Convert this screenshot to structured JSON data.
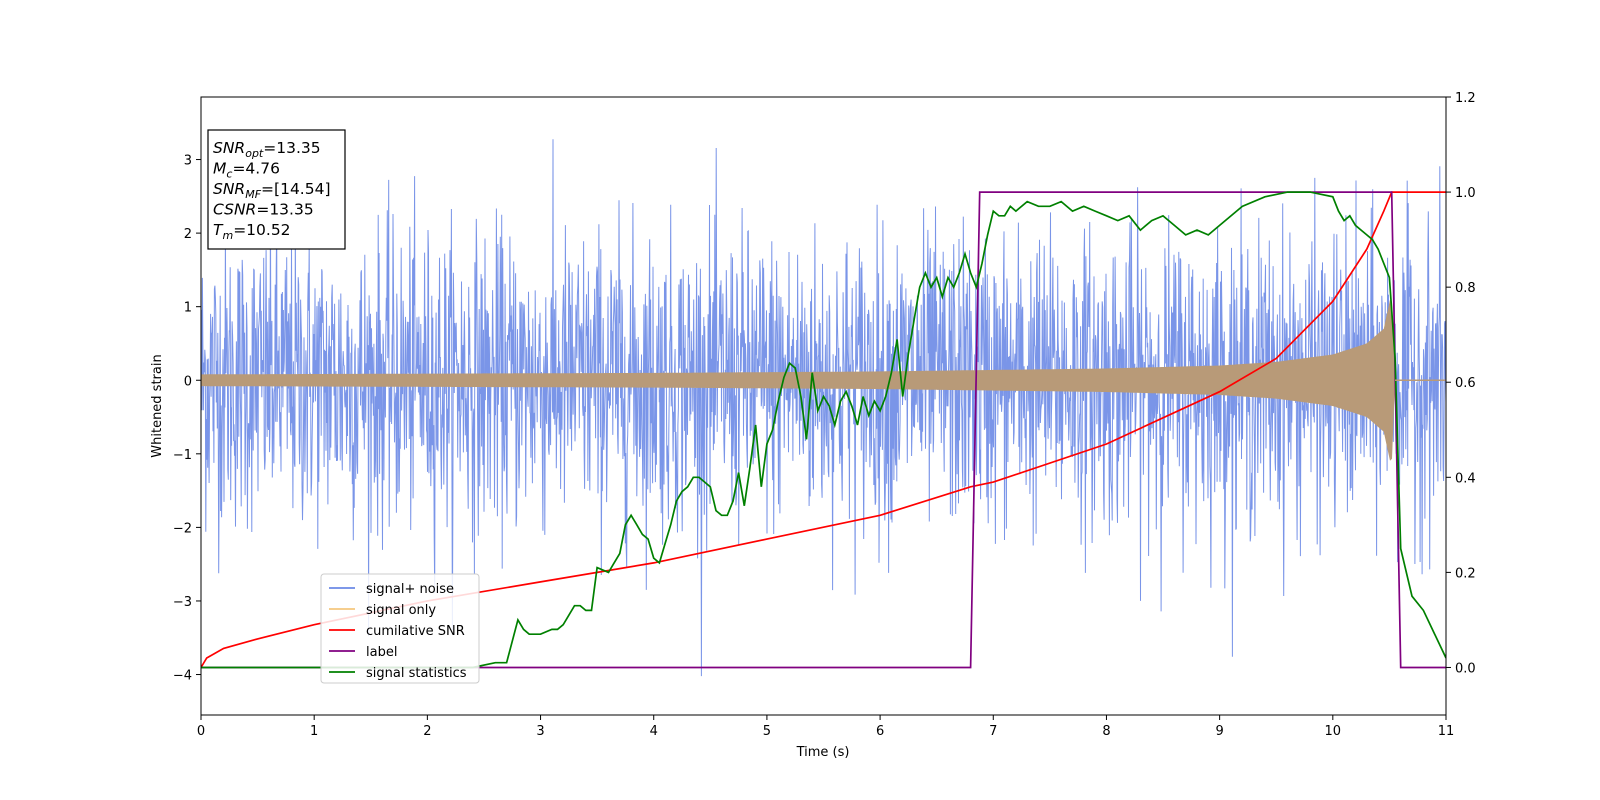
{
  "chart_data": {
    "type": "line",
    "xlabel": "Time (s)",
    "ylabel": "Whitened strain",
    "xlim": [
      0,
      11
    ],
    "ylim_left": [
      -4.55,
      3.85
    ],
    "ylim_right": [
      -0.1,
      1.2
    ],
    "x_ticks": [
      "0",
      "1",
      "2",
      "3",
      "4",
      "5",
      "6",
      "7",
      "8",
      "9",
      "10",
      "11"
    ],
    "y_ticks_left": [
      "−4",
      "−3",
      "−2",
      "−1",
      "0",
      "1",
      "2",
      "3"
    ],
    "y_ticks_right": [
      "0.0",
      "0.2",
      "0.4",
      "0.6",
      "0.8",
      "1.0",
      "1.2"
    ],
    "grid": false,
    "legend_position": "lower-left",
    "colors": {
      "noise": "#6b8ae6",
      "signal": "#f5c77e",
      "cum_snr": "#ff0000",
      "label": "#800080",
      "stat": "#008000",
      "overlap": "#b89a78"
    },
    "annotation": [
      {
        "sym": "SNR",
        "sub": "opt",
        "val": "=13.35"
      },
      {
        "sym": "M",
        "sub": "c",
        "val": "=4.76"
      },
      {
        "sym": "SNR",
        "sub": "MF",
        "val": "=[14.54]"
      },
      {
        "sym": "CSNR",
        "sub": "",
        "val": "=13.35"
      },
      {
        "sym": "T",
        "sub": "m",
        "val": "=10.52"
      }
    ],
    "series": [
      {
        "name": "signal+ noise",
        "axis": "left",
        "description_values": {
          "std": 1.0,
          "x_start": 0,
          "x_end": 11
        }
      },
      {
        "name": "signal only",
        "axis": "left",
        "envelope": {
          "x": [
            0,
            2,
            4,
            6,
            8,
            9,
            9.5,
            10,
            10.3,
            10.45,
            10.52,
            10.55,
            11
          ],
          "amp": [
            0.08,
            0.09,
            0.1,
            0.12,
            0.16,
            0.2,
            0.25,
            0.35,
            0.5,
            0.7,
            1.2,
            0.0,
            0.0
          ]
        }
      },
      {
        "name": "cumilative SNR",
        "axis": "right",
        "x": [
          0,
          0.05,
          0.2,
          0.5,
          1,
          2,
          3,
          4,
          5,
          6,
          6.8,
          7,
          8,
          9,
          9.5,
          10,
          10.3,
          10.45,
          10.52,
          10.55,
          11
        ],
        "y": [
          0.0,
          0.02,
          0.04,
          0.06,
          0.09,
          0.14,
          0.18,
          0.22,
          0.27,
          0.32,
          0.38,
          0.39,
          0.47,
          0.58,
          0.65,
          0.77,
          0.88,
          0.96,
          1.0,
          1.0,
          1.0
        ]
      },
      {
        "name": "label",
        "axis": "right",
        "x": [
          0,
          6.8,
          6.88,
          10.52,
          10.6,
          11
        ],
        "y": [
          0,
          0,
          1,
          1,
          0,
          0
        ]
      },
      {
        "name": "signal statistics",
        "axis": "right",
        "x": [
          0,
          2.4,
          2.6,
          2.7,
          2.8,
          2.85,
          2.9,
          3.0,
          3.1,
          3.15,
          3.2,
          3.3,
          3.35,
          3.4,
          3.45,
          3.5,
          3.6,
          3.65,
          3.7,
          3.75,
          3.8,
          3.85,
          3.9,
          3.95,
          4.0,
          4.05,
          4.1,
          4.15,
          4.2,
          4.25,
          4.3,
          4.35,
          4.4,
          4.45,
          4.5,
          4.55,
          4.6,
          4.65,
          4.7,
          4.75,
          4.8,
          4.85,
          4.9,
          4.95,
          5.0,
          5.05,
          5.1,
          5.15,
          5.2,
          5.25,
          5.3,
          5.35,
          5.4,
          5.45,
          5.5,
          5.55,
          5.6,
          5.65,
          5.7,
          5.75,
          5.8,
          5.85,
          5.9,
          5.95,
          6.0,
          6.05,
          6.1,
          6.15,
          6.2,
          6.25,
          6.3,
          6.35,
          6.4,
          6.45,
          6.5,
          6.55,
          6.6,
          6.65,
          6.7,
          6.75,
          6.8,
          6.85,
          6.9,
          6.95,
          7.0,
          7.05,
          7.1,
          7.15,
          7.2,
          7.3,
          7.4,
          7.5,
          7.6,
          7.7,
          7.8,
          7.9,
          8.0,
          8.1,
          8.2,
          8.3,
          8.4,
          8.5,
          8.6,
          8.7,
          8.8,
          8.9,
          9.0,
          9.2,
          9.4,
          9.6,
          9.8,
          10.0,
          10.05,
          10.1,
          10.15,
          10.2,
          10.25,
          10.3,
          10.35,
          10.4,
          10.45,
          10.5,
          10.55,
          10.6,
          10.7,
          10.8,
          10.9,
          11.0
        ],
        "y": [
          0.0,
          0.0,
          0.01,
          0.01,
          0.1,
          0.08,
          0.07,
          0.07,
          0.08,
          0.08,
          0.09,
          0.13,
          0.13,
          0.12,
          0.12,
          0.21,
          0.2,
          0.22,
          0.24,
          0.3,
          0.32,
          0.3,
          0.28,
          0.27,
          0.23,
          0.22,
          0.26,
          0.3,
          0.35,
          0.37,
          0.38,
          0.4,
          0.4,
          0.39,
          0.38,
          0.33,
          0.32,
          0.32,
          0.35,
          0.41,
          0.34,
          0.42,
          0.51,
          0.38,
          0.47,
          0.5,
          0.56,
          0.61,
          0.64,
          0.63,
          0.57,
          0.48,
          0.62,
          0.54,
          0.57,
          0.55,
          0.51,
          0.56,
          0.58,
          0.55,
          0.51,
          0.57,
          0.53,
          0.56,
          0.54,
          0.57,
          0.62,
          0.69,
          0.57,
          0.66,
          0.73,
          0.8,
          0.83,
          0.8,
          0.82,
          0.78,
          0.82,
          0.8,
          0.83,
          0.87,
          0.83,
          0.8,
          0.85,
          0.91,
          0.96,
          0.95,
          0.95,
          0.97,
          0.96,
          0.98,
          0.97,
          0.97,
          0.98,
          0.96,
          0.97,
          0.96,
          0.95,
          0.94,
          0.95,
          0.92,
          0.94,
          0.95,
          0.93,
          0.91,
          0.92,
          0.91,
          0.93,
          0.97,
          0.99,
          1.0,
          1.0,
          0.99,
          0.96,
          0.94,
          0.95,
          0.93,
          0.92,
          0.91,
          0.9,
          0.88,
          0.85,
          0.82,
          0.65,
          0.25,
          0.15,
          0.12,
          0.07,
          0.02
        ]
      }
    ]
  }
}
